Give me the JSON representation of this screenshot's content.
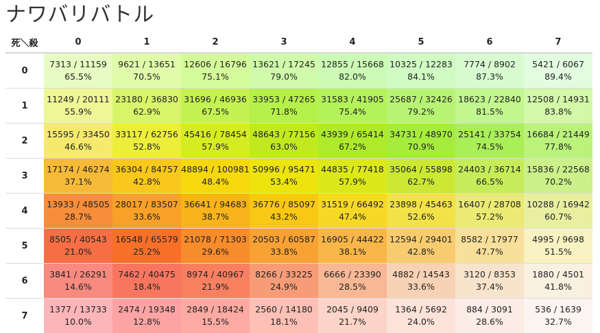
{
  "title": "ナワバリバトル",
  "corner_label": "死＼殺",
  "columns": [
    "0",
    "1",
    "2",
    "3",
    "4",
    "5",
    "6",
    "7"
  ],
  "rows": [
    {
      "label": "0",
      "cells": [
        {
          "ratio": "7313 / 11159",
          "pct": "65.5%",
          "color": "#e6fcc2"
        },
        {
          "ratio": "9621 / 13651",
          "pct": "70.5%",
          "color": "#e0fcaa"
        },
        {
          "ratio": "12606 / 16796",
          "pct": "75.1%",
          "color": "#d4fb9a"
        },
        {
          "ratio": "13621 / 17245",
          "pct": "79.0%",
          "color": "#d0fbaa"
        },
        {
          "ratio": "12855 / 15668",
          "pct": "82.0%",
          "color": "#cbfbb5"
        },
        {
          "ratio": "10325 / 12283",
          "pct": "84.1%",
          "color": "#d0fbc2"
        },
        {
          "ratio": "7774 / 8902",
          "pct": "87.3%",
          "color": "#d8fbd0"
        },
        {
          "ratio": "5421 / 6067",
          "pct": "89.4%",
          "color": "#e2fce0"
        }
      ]
    },
    {
      "label": "1",
      "cells": [
        {
          "ratio": "11249 / 20111",
          "pct": "55.9%",
          "color": "#eef796"
        },
        {
          "ratio": "23180 / 36830",
          "pct": "62.9%",
          "color": "#d8f46a"
        },
        {
          "ratio": "31696 / 46936",
          "pct": "67.5%",
          "color": "#c4f252"
        },
        {
          "ratio": "33953 / 47265",
          "pct": "71.8%",
          "color": "#b6f04a"
        },
        {
          "ratio": "31583 / 41905",
          "pct": "75.4%",
          "color": "#b4f25a"
        },
        {
          "ratio": "25687 / 32426",
          "pct": "79.2%",
          "color": "#b8f474"
        },
        {
          "ratio": "18623 / 22840",
          "pct": "81.5%",
          "color": "#c2f68e"
        },
        {
          "ratio": "12508 / 14931",
          "pct": "83.8%",
          "color": "#d2f8a8"
        }
      ]
    },
    {
      "label": "2",
      "cells": [
        {
          "ratio": "15595 / 33450",
          "pct": "46.6%",
          "color": "#f6ea6c"
        },
        {
          "ratio": "33117 / 62756",
          "pct": "52.8%",
          "color": "#ecee3a"
        },
        {
          "ratio": "45416 / 78454",
          "pct": "57.9%",
          "color": "#d6ec22"
        },
        {
          "ratio": "48643 / 77156",
          "pct": "63.0%",
          "color": "#c0ea1e"
        },
        {
          "ratio": "43939 / 65414",
          "pct": "67.2%",
          "color": "#aeea2a"
        },
        {
          "ratio": "34731 / 48970",
          "pct": "70.9%",
          "color": "#a6ec3c"
        },
        {
          "ratio": "25141 / 33754",
          "pct": "74.5%",
          "color": "#aaee58"
        },
        {
          "ratio": "16684 / 21449",
          "pct": "77.8%",
          "color": "#baf27a"
        }
      ]
    },
    {
      "label": "3",
      "cells": [
        {
          "ratio": "17174 / 46274",
          "pct": "37.1%",
          "color": "#f6ba38"
        },
        {
          "ratio": "36304 / 84757",
          "pct": "42.8%",
          "color": "#f8c81c"
        },
        {
          "ratio": "48894 / 100981",
          "pct": "48.4%",
          "color": "#f6d80e"
        },
        {
          "ratio": "50996 / 95471",
          "pct": "53.4%",
          "color": "#ece40c"
        },
        {
          "ratio": "44835 / 77418",
          "pct": "57.9%",
          "color": "#dce81a"
        },
        {
          "ratio": "35064 / 55898",
          "pct": "62.7%",
          "color": "#cce834"
        },
        {
          "ratio": "24403 / 36714",
          "pct": "66.5%",
          "color": "#c6ec5a"
        },
        {
          "ratio": "15836 / 22568",
          "pct": "70.2%",
          "color": "#ccf08a"
        }
      ]
    },
    {
      "label": "4",
      "cells": [
        {
          "ratio": "13933 / 48505",
          "pct": "28.7%",
          "color": "#f88d3a"
        },
        {
          "ratio": "28017 / 83507",
          "pct": "33.6%",
          "color": "#f8a028"
        },
        {
          "ratio": "36641 / 94683",
          "pct": "38.7%",
          "color": "#f8b41a"
        },
        {
          "ratio": "36776 / 85097",
          "pct": "43.2%",
          "color": "#f8c814"
        },
        {
          "ratio": "31519 / 66492",
          "pct": "47.4%",
          "color": "#f6d826"
        },
        {
          "ratio": "23898 / 45463",
          "pct": "52.6%",
          "color": "#f2e248"
        },
        {
          "ratio": "16407 / 28708",
          "pct": "57.2%",
          "color": "#eaea74"
        },
        {
          "ratio": "10288 / 16942",
          "pct": "60.7%",
          "color": "#e8f0a0"
        }
      ]
    },
    {
      "label": "5",
      "cells": [
        {
          "ratio": "8505 / 40543",
          "pct": "21.0%",
          "color": "#f86e44"
        },
        {
          "ratio": "16548 / 65579",
          "pct": "25.2%",
          "color": "#f87028"
        },
        {
          "ratio": "21078 / 71303",
          "pct": "29.6%",
          "color": "#f88c2a"
        },
        {
          "ratio": "20503 / 60587",
          "pct": "33.8%",
          "color": "#f8a234"
        },
        {
          "ratio": "16905 / 44422",
          "pct": "38.1%",
          "color": "#f8b648"
        },
        {
          "ratio": "12594 / 29401",
          "pct": "42.8%",
          "color": "#f8cc6e"
        },
        {
          "ratio": "8582 / 17977",
          "pct": "47.7%",
          "color": "#f8e09a"
        },
        {
          "ratio": "4995 / 9698",
          "pct": "51.5%",
          "color": "#f8f2c2"
        }
      ]
    },
    {
      "label": "6",
      "cells": [
        {
          "ratio": "3841 / 26291",
          "pct": "14.6%",
          "color": "#f88a80"
        },
        {
          "ratio": "7462 / 40475",
          "pct": "18.4%",
          "color": "#f87660"
        },
        {
          "ratio": "8974 / 40967",
          "pct": "21.9%",
          "color": "#f88060"
        },
        {
          "ratio": "8266 / 33225",
          "pct": "24.9%",
          "color": "#f89c78"
        },
        {
          "ratio": "6666 / 23390",
          "pct": "28.5%",
          "color": "#f8b896"
        },
        {
          "ratio": "4882 / 14543",
          "pct": "33.6%",
          "color": "#f8d2b4"
        },
        {
          "ratio": "3120 / 8353",
          "pct": "37.4%",
          "color": "#f8e4cc"
        },
        {
          "ratio": "1880 / 4501",
          "pct": "41.8%",
          "color": "#faf0e0"
        }
      ]
    },
    {
      "label": "7",
      "cells": [
        {
          "ratio": "1377 / 13733",
          "pct": "10.0%",
          "color": "#fcb6ba"
        },
        {
          "ratio": "2474 / 19348",
          "pct": "12.8%",
          "color": "#fca4a4"
        },
        {
          "ratio": "2849 / 18424",
          "pct": "15.5%",
          "color": "#fcaaa2"
        },
        {
          "ratio": "2560 / 14180",
          "pct": "18.1%",
          "color": "#fcc0b6"
        },
        {
          "ratio": "2045 / 9409",
          "pct": "21.7%",
          "color": "#fcd4c8"
        },
        {
          "ratio": "1364 / 5692",
          "pct": "24.0%",
          "color": "#fce2d8"
        },
        {
          "ratio": "884 / 3091",
          "pct": "28.6%",
          "color": "#fcece6"
        },
        {
          "ratio": "536 / 1639",
          "pct": "32.7%",
          "color": "#fcf4f0"
        }
      ]
    }
  ]
}
